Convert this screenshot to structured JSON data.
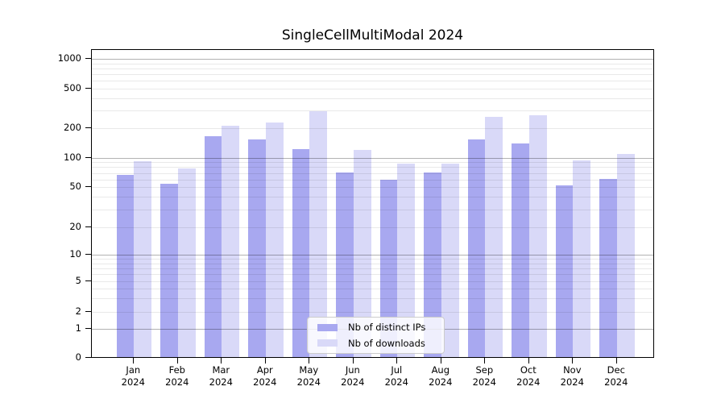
{
  "title": "SingleCellMultiModal 2024",
  "chart_data": {
    "type": "bar",
    "title": "SingleCellMultiModal 2024",
    "categories": [
      "Jan 2024",
      "Feb 2024",
      "Mar 2024",
      "Apr 2024",
      "May 2024",
      "Jun 2024",
      "Jul 2024",
      "Aug 2024",
      "Sep 2024",
      "Oct 2024",
      "Nov 2024",
      "Dec 2024"
    ],
    "series": [
      {
        "name": "Nb of distinct IPs",
        "color": "#a8a8f0",
        "values": [
          65,
          53,
          162,
          150,
          120,
          70,
          59,
          69,
          151,
          136,
          51,
          60
        ]
      },
      {
        "name": "Nb of downloads",
        "color": "#d9d9f8",
        "values": [
          90,
          76,
          208,
          222,
          290,
          118,
          85,
          86,
          256,
          265,
          92,
          107
        ]
      }
    ],
    "xlabel": "",
    "ylabel": "",
    "yscale": "custom-log",
    "yticks": [
      0,
      1,
      2,
      5,
      10,
      20,
      50,
      100,
      200,
      500,
      1000
    ],
    "grid": true,
    "legend_position": "lower center",
    "colors": {
      "major_grid": "#b2b2b2",
      "minor_grid": "#e9e9e9",
      "axis": "#000000",
      "background": "#ffffff"
    },
    "layout": {
      "ytick_anchors": [
        {
          "v": 0,
          "f": 0.0
        },
        {
          "v": 1,
          "f": 0.0932
        },
        {
          "v": 2,
          "f": 0.148
        },
        {
          "v": 5,
          "f": 0.248
        },
        {
          "v": 10,
          "f": 0.3342
        },
        {
          "v": 20,
          "f": 0.4238
        },
        {
          "v": 50,
          "f": 0.5527
        },
        {
          "v": 100,
          "f": 0.6483
        },
        {
          "v": 200,
          "f": 0.7444
        },
        {
          "v": 500,
          "f": 0.872
        },
        {
          "v": 1000,
          "f": 0.9679
        }
      ],
      "minor_grid_values": [
        3,
        4,
        6,
        7,
        8,
        9,
        30,
        40,
        60,
        70,
        80,
        90,
        300,
        400,
        600,
        700,
        800,
        900
      ],
      "major_grid_values": [
        1,
        10,
        100,
        1000
      ],
      "x_first_center": 52.3,
      "x_step": 54.5,
      "bar_width": 21.8
    }
  }
}
